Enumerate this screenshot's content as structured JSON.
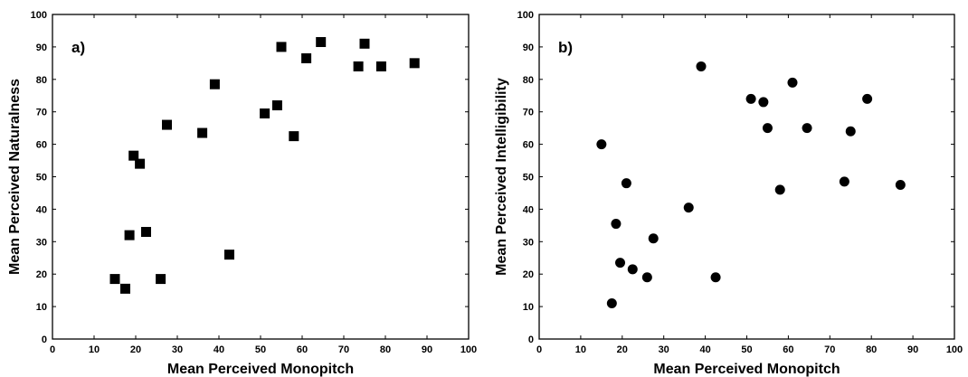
{
  "chart_data": [
    {
      "type": "scatter",
      "panel_label": "a)",
      "xlabel": "Mean Perceived Monopitch",
      "ylabel": "Mean Perceived Naturalness",
      "xlim": [
        0,
        100
      ],
      "ylim": [
        0,
        100
      ],
      "xticks": [
        "0",
        "10",
        "20",
        "30",
        "40",
        "50",
        "60",
        "70",
        "80",
        "90",
        "100"
      ],
      "yticks": [
        "0",
        "10",
        "20",
        "30",
        "40",
        "50",
        "60",
        "70",
        "80",
        "90",
        "100"
      ],
      "marker": "square",
      "color": "#000000",
      "grid": false,
      "points": [
        {
          "x": 15,
          "y": 18.5
        },
        {
          "x": 17.5,
          "y": 15.5
        },
        {
          "x": 18.5,
          "y": 32
        },
        {
          "x": 19.5,
          "y": 56.5
        },
        {
          "x": 21,
          "y": 54
        },
        {
          "x": 22.5,
          "y": 33
        },
        {
          "x": 26,
          "y": 18.5
        },
        {
          "x": 27.5,
          "y": 66
        },
        {
          "x": 36,
          "y": 63.5
        },
        {
          "x": 39,
          "y": 78.5
        },
        {
          "x": 42.5,
          "y": 26
        },
        {
          "x": 51,
          "y": 69.5
        },
        {
          "x": 54,
          "y": 72
        },
        {
          "x": 55,
          "y": 90
        },
        {
          "x": 58,
          "y": 62.5
        },
        {
          "x": 61,
          "y": 86.5
        },
        {
          "x": 64.5,
          "y": 91.5
        },
        {
          "x": 73.5,
          "y": 84
        },
        {
          "x": 75,
          "y": 91
        },
        {
          "x": 79,
          "y": 84
        },
        {
          "x": 87,
          "y": 85
        }
      ]
    },
    {
      "type": "scatter",
      "panel_label": "b)",
      "xlabel": "Mean Perceived Monopitch",
      "ylabel": "Mean Perceived Intelligibility",
      "xlim": [
        0,
        100
      ],
      "ylim": [
        0,
        100
      ],
      "xticks": [
        "0",
        "10",
        "20",
        "30",
        "40",
        "50",
        "60",
        "70",
        "80",
        "90",
        "100"
      ],
      "yticks": [
        "0",
        "10",
        "20",
        "30",
        "40",
        "50",
        "60",
        "70",
        "80",
        "90",
        "100"
      ],
      "marker": "circle",
      "color": "#000000",
      "grid": false,
      "points": [
        {
          "x": 15,
          "y": 60
        },
        {
          "x": 17.5,
          "y": 11
        },
        {
          "x": 18.5,
          "y": 35.5
        },
        {
          "x": 19.5,
          "y": 23.5
        },
        {
          "x": 21,
          "y": 48
        },
        {
          "x": 22.5,
          "y": 21.5
        },
        {
          "x": 26,
          "y": 19
        },
        {
          "x": 27.5,
          "y": 31
        },
        {
          "x": 36,
          "y": 40.5
        },
        {
          "x": 39,
          "y": 84
        },
        {
          "x": 42.5,
          "y": 19
        },
        {
          "x": 51,
          "y": 74
        },
        {
          "x": 54,
          "y": 73
        },
        {
          "x": 55,
          "y": 65
        },
        {
          "x": 58,
          "y": 46
        },
        {
          "x": 61,
          "y": 79
        },
        {
          "x": 64.5,
          "y": 65
        },
        {
          "x": 73.5,
          "y": 48.5
        },
        {
          "x": 75,
          "y": 64
        },
        {
          "x": 79,
          "y": 74
        },
        {
          "x": 87,
          "y": 47.5
        }
      ]
    }
  ]
}
